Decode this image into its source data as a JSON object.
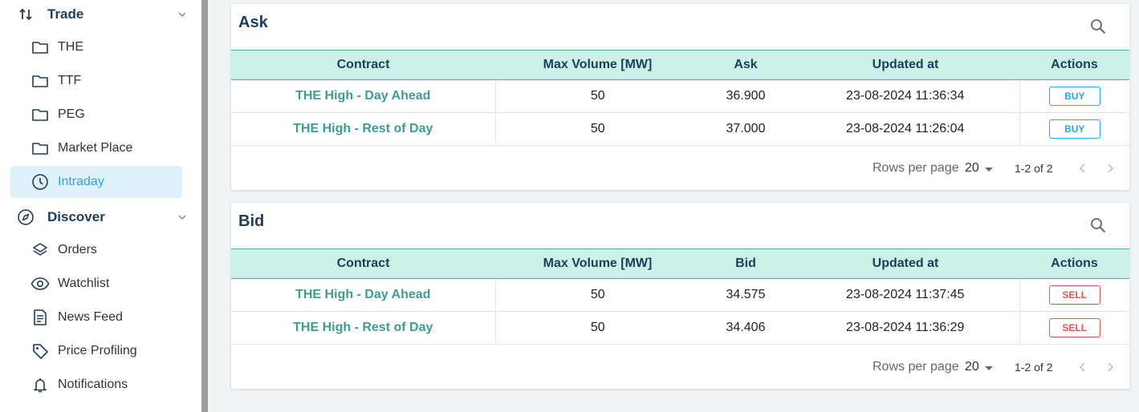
{
  "sidebar": {
    "sections": [
      {
        "label": "Trade",
        "items": [
          {
            "label": "THE",
            "icon": "folder-icon"
          },
          {
            "label": "TTF",
            "icon": "folder-icon"
          },
          {
            "label": "PEG",
            "icon": "folder-icon"
          },
          {
            "label": "Market Place",
            "icon": "folder-icon"
          },
          {
            "label": "Intraday",
            "icon": "clock-icon",
            "active": true
          }
        ]
      },
      {
        "label": "Discover",
        "items": [
          {
            "label": "Orders",
            "icon": "layers-icon"
          },
          {
            "label": "Watchlist",
            "icon": "eye-icon"
          },
          {
            "label": "News Feed",
            "icon": "document-icon"
          },
          {
            "label": "Price Profiling",
            "icon": "tag-icon"
          },
          {
            "label": "Notifications",
            "icon": "bell-icon"
          }
        ]
      }
    ]
  },
  "ask": {
    "title": "Ask",
    "columns": [
      "Contract",
      "Max Volume [MW]",
      "Ask",
      "Updated at",
      "Actions"
    ],
    "rows": [
      {
        "contract": "THE High - Day Ahead",
        "volume": "50",
        "price": "36.900",
        "updated": "23-08-2024 11:36:34",
        "action": "BUY"
      },
      {
        "contract": "THE High - Rest of Day",
        "volume": "50",
        "price": "37.000",
        "updated": "23-08-2024 11:26:04",
        "action": "BUY"
      }
    ],
    "pagination": {
      "rows_per_page_label": "Rows per page",
      "rows_per_page": "20",
      "range": "1-2 of 2"
    }
  },
  "bid": {
    "title": "Bid",
    "columns": [
      "Contract",
      "Max Volume [MW]",
      "Bid",
      "Updated at",
      "Actions"
    ],
    "rows": [
      {
        "contract": "THE High - Day Ahead",
        "volume": "50",
        "price": "34.575",
        "updated": "23-08-2024 11:37:45",
        "action": "SELL"
      },
      {
        "contract": "THE High - Rest of Day",
        "volume": "50",
        "price": "34.406",
        "updated": "23-08-2024 11:36:29",
        "action": "SELL"
      }
    ],
    "pagination": {
      "rows_per_page_label": "Rows per page",
      "rows_per_page": "20",
      "range": "1-2 of 2"
    }
  },
  "colors": {
    "accent": "#2aa7de",
    "header_bg": "#cdf1e8",
    "header_border": "#47b1a1",
    "contract_text": "#3d9d91",
    "title_text": "#1f3c5a",
    "sell": "#e05454"
  }
}
